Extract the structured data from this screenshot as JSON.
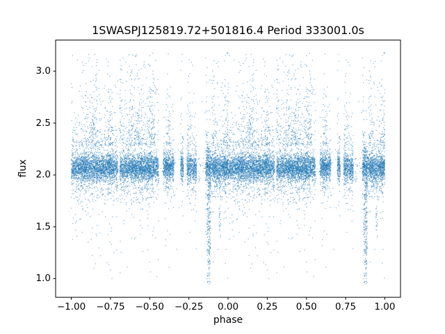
{
  "figure": {
    "background": "#ffffff"
  },
  "chart_data": {
    "type": "scatter",
    "title": "1SWASPJ125819.72+501816.4 Period 333001.0s",
    "xlabel": "phase",
    "ylabel": "flux",
    "xlim": [
      -1.1,
      1.1
    ],
    "ylim": [
      0.82,
      3.3
    ],
    "xticks": [
      -1.0,
      -0.75,
      -0.5,
      -0.25,
      0.0,
      0.25,
      0.5,
      0.75,
      1.0
    ],
    "xtick_labels": [
      "−1.00",
      "−0.75",
      "−0.50",
      "−0.25",
      "0.00",
      "0.25",
      "0.50",
      "0.75",
      "1.00"
    ],
    "yticks": [
      1.0,
      1.5,
      2.0,
      2.5,
      3.0
    ],
    "ytick_labels": [
      "1.0",
      "1.5",
      "2.0",
      "2.5",
      "3.0"
    ],
    "grid": false,
    "legend": null,
    "marker_color": "#1f77b4",
    "marker_alpha": 0.55,
    "marker_size_px": 1.25,
    "description": "Phase-folded SuperWASP light curve, each point plotted twice at phase p and p-1; dense noisy band near flux 2.1 with upper haze to ~3.2, sparse low outliers, observational gap stripes, and a deep narrow eclipse dip at folded phase ~0.88 (also at -0.12) reaching flux ~0.95",
    "generator": {
      "seed": 42,
      "n_folded_points": 8500,
      "baseline_flux": 2.07,
      "core_sigma": 0.06,
      "wide_fraction": 0.3,
      "wide_sigma": 0.13,
      "upper_tail_fraction": 0.11,
      "upper_tail_start": 2.28,
      "upper_tail_scale": 0.3,
      "lower_tail_fraction": 0.035,
      "lower_tail_start": 1.9,
      "lower_tail_scale": 0.28,
      "flux_min": 0.93,
      "flux_max": 3.18,
      "gaps_folded_phase": [
        [
          0.297,
          0.309
        ],
        [
          0.558,
          0.585
        ],
        [
          0.655,
          0.698
        ],
        [
          0.716,
          0.737
        ],
        [
          0.799,
          0.856
        ]
      ],
      "gap_keep": 0.03,
      "texture_bins": 30,
      "eclipses": [
        {
          "folded_phase": 0.877,
          "width": 0.022,
          "min_flux": 0.95,
          "max_flux": 2.3,
          "bias": 0.8,
          "n_points": 300
        },
        {
          "folded_phase": 0.948,
          "width": 0.012,
          "min_flux": 1.35,
          "max_flux": 2.2,
          "bias": 0.9,
          "n_points": 60
        }
      ]
    }
  }
}
